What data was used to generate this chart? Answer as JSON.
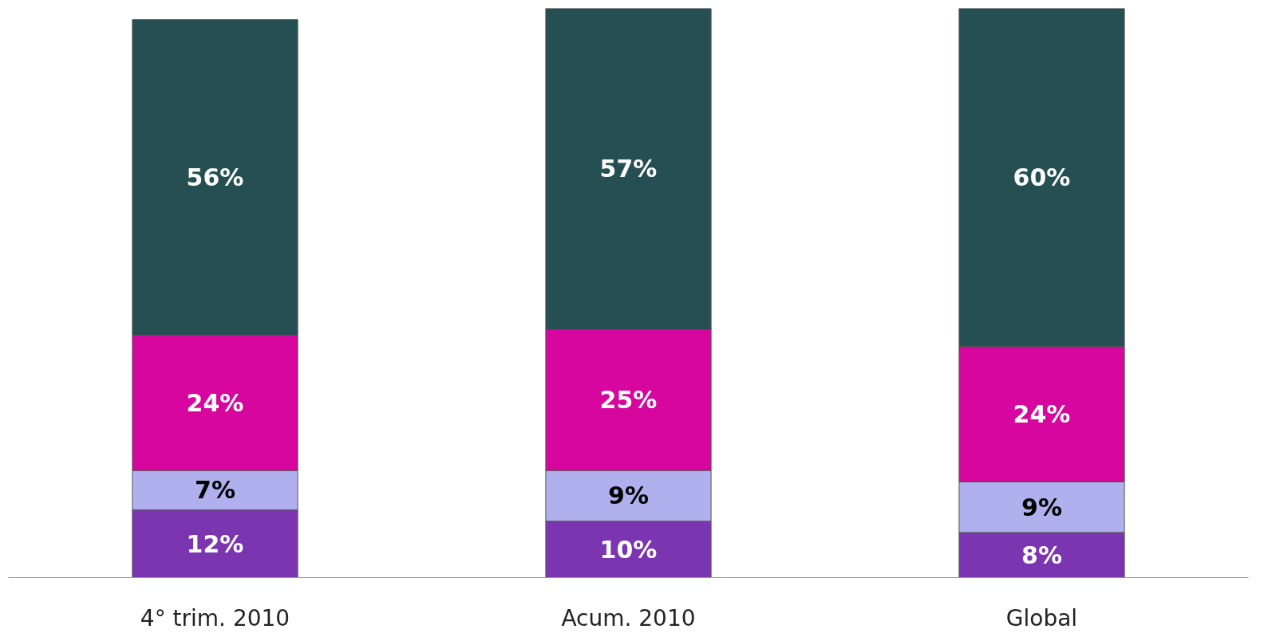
{
  "chart_data": {
    "type": "bar",
    "stacked": true,
    "grid": false,
    "categories": [
      "4° trim. 2010",
      "Acum. 2010",
      "Global"
    ],
    "series": [
      {
        "color": "#7b35b0",
        "values": [
          12,
          10,
          8
        ],
        "value_labels": [
          "12%",
          "10%",
          "8%"
        ]
      },
      {
        "color": "#b0b0ee",
        "values": [
          7,
          9,
          9
        ],
        "value_labels": [
          "7%",
          "9%",
          "9%"
        ]
      },
      {
        "color": "#d6069e",
        "values": [
          24,
          25,
          24
        ],
        "value_labels": [
          "24%",
          "25%",
          "24%"
        ]
      },
      {
        "color": "#254f52",
        "values": [
          56,
          57,
          60
        ],
        "value_labels": [
          "56%",
          "57%",
          "60%"
        ]
      }
    ]
  }
}
